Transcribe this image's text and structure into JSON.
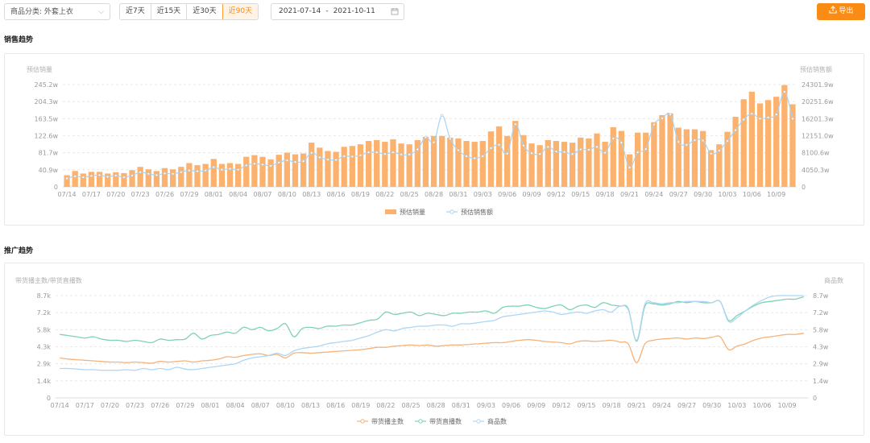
{
  "toolbar": {
    "category_label": "商品分类: 外套上衣",
    "periods": [
      "近7天",
      "近15天",
      "近30天",
      "近90天"
    ],
    "active_period": 3,
    "date_start": "2021-07-14",
    "date_sep": "-",
    "date_end": "2021-10-11",
    "export_label": "导出",
    "accent_color": "#fa8c16"
  },
  "icons": {
    "dropdown": "chevron-down-icon",
    "calendar": "calendar-icon",
    "export": "upload-icon"
  },
  "sections": {
    "sales_title": "销售趋势",
    "promo_title": "推广趋势"
  },
  "chart_data": [
    {
      "type": "bar",
      "x": [
        "07/14",
        "07/15",
        "07/16",
        "07/17",
        "07/18",
        "07/19",
        "07/20",
        "07/21",
        "07/22",
        "07/23",
        "07/24",
        "07/25",
        "07/26",
        "07/27",
        "07/28",
        "07/29",
        "07/30",
        "07/31",
        "08/01",
        "08/02",
        "08/03",
        "08/04",
        "08/05",
        "08/06",
        "08/07",
        "08/08",
        "08/09",
        "08/10",
        "08/11",
        "08/12",
        "08/13",
        "08/14",
        "08/15",
        "08/16",
        "08/17",
        "08/18",
        "08/19",
        "08/20",
        "08/21",
        "08/22",
        "08/23",
        "08/24",
        "08/25",
        "08/26",
        "08/27",
        "08/28",
        "08/29",
        "08/30",
        "08/31",
        "09/01",
        "09/02",
        "09/03",
        "09/04",
        "09/05",
        "09/06",
        "09/07",
        "09/08",
        "09/09",
        "09/10",
        "09/11",
        "09/12",
        "09/13",
        "09/14",
        "09/15",
        "09/16",
        "09/17",
        "09/18",
        "09/19",
        "09/20",
        "09/21",
        "09/22",
        "09/23",
        "09/24",
        "09/25",
        "09/26",
        "09/27",
        "09/28",
        "09/29",
        "09/30",
        "10/01",
        "10/02",
        "10/03",
        "10/04",
        "10/05",
        "10/06",
        "10/07",
        "10/08",
        "10/09",
        "10/10",
        "10/11"
      ],
      "x_tick_labels": [
        "07/14",
        "07/17",
        "07/20",
        "07/23",
        "07/26",
        "07/29",
        "08/01",
        "08/04",
        "08/07",
        "08/10",
        "08/13",
        "08/16",
        "08/19",
        "08/22",
        "08/25",
        "08/28",
        "08/31",
        "09/03",
        "09/06",
        "09/09",
        "09/12",
        "09/15",
        "09/18",
        "09/21",
        "09/24",
        "09/27",
        "09/30",
        "10/03",
        "10/06",
        "10/09"
      ],
      "y_left": {
        "label": "预估销量",
        "ticks": [
          "0",
          "40.9w",
          "81.7w",
          "122.6w",
          "163.5w",
          "204.3w",
          "245.2w"
        ],
        "range": [
          0,
          245.2
        ]
      },
      "y_right": {
        "label": "预估销售额",
        "ticks": [
          "0",
          "4050.3w",
          "8100.6w",
          "12151.0w",
          "16201.3w",
          "20251.6w",
          "24301.9w"
        ],
        "range": [
          0,
          24301.9
        ]
      },
      "series": [
        {
          "name": "预估销量",
          "kind": "bar",
          "axis": "left",
          "color": "#fbb26e",
          "values": [
            28,
            38,
            32,
            36,
            36,
            32,
            35,
            33,
            40,
            48,
            42,
            38,
            45,
            42,
            48,
            57,
            52,
            55,
            67,
            55,
            57,
            55,
            72,
            76,
            72,
            66,
            77,
            82,
            78,
            80,
            106,
            94,
            86,
            84,
            96,
            98,
            102,
            110,
            112,
            108,
            114,
            104,
            102,
            112,
            120,
            122,
            122,
            118,
            116,
            110,
            108,
            110,
            133,
            145,
            122,
            158,
            124,
            104,
            100,
            112,
            110,
            108,
            106,
            118,
            116,
            128,
            108,
            143,
            134,
            78,
            130,
            130,
            155,
            172,
            176,
            142,
            138,
            138,
            134,
            88,
            102,
            132,
            168,
            210,
            228,
            200,
            208,
            216,
            244,
            198
          ]
        },
        {
          "name": "预估销售额",
          "kind": "line",
          "axis": "right",
          "color": "#a9d3f2",
          "values": [
            2000,
            2500,
            2300,
            2600,
            2800,
            2400,
            2700,
            2300,
            2700,
            3500,
            3100,
            2800,
            3200,
            3100,
            3500,
            3900,
            3700,
            3900,
            4700,
            4100,
            4300,
            4100,
            5100,
            5500,
            5300,
            5000,
            5800,
            6300,
            5900,
            6100,
            8100,
            7000,
            6500,
            6400,
            7300,
            7200,
            7500,
            8200,
            8200,
            7800,
            8200,
            7700,
            7700,
            8900,
            11800,
            10600,
            17000,
            11400,
            8700,
            7300,
            6800,
            7300,
            9200,
            10000,
            7900,
            14900,
            9800,
            8000,
            7800,
            9500,
            8400,
            8300,
            7800,
            8900,
            8800,
            9500,
            8100,
            11500,
            10500,
            4600,
            8200,
            9000,
            14800,
            16300,
            17200,
            10700,
            10000,
            11100,
            11000,
            7900,
            8600,
            10900,
            13500,
            16000,
            17400,
            16200,
            16500,
            17200,
            22600,
            16200
          ]
        }
      ]
    },
    {
      "type": "line",
      "x": [
        "07/14",
        "07/15",
        "07/16",
        "07/17",
        "07/18",
        "07/19",
        "07/20",
        "07/21",
        "07/22",
        "07/23",
        "07/24",
        "07/25",
        "07/26",
        "07/27",
        "07/28",
        "07/29",
        "07/30",
        "07/31",
        "08/01",
        "08/02",
        "08/03",
        "08/04",
        "08/05",
        "08/06",
        "08/07",
        "08/08",
        "08/09",
        "08/10",
        "08/11",
        "08/12",
        "08/13",
        "08/14",
        "08/15",
        "08/16",
        "08/17",
        "08/18",
        "08/19",
        "08/20",
        "08/21",
        "08/22",
        "08/23",
        "08/24",
        "08/25",
        "08/26",
        "08/27",
        "08/28",
        "08/29",
        "08/30",
        "08/31",
        "09/01",
        "09/02",
        "09/03",
        "09/04",
        "09/05",
        "09/06",
        "09/07",
        "09/08",
        "09/09",
        "09/10",
        "09/11",
        "09/12",
        "09/13",
        "09/14",
        "09/15",
        "09/16",
        "09/17",
        "09/18",
        "09/19",
        "09/20",
        "09/21",
        "09/22",
        "09/23",
        "09/24",
        "09/25",
        "09/26",
        "09/27",
        "09/28",
        "09/29",
        "09/30",
        "10/01",
        "10/02",
        "10/03",
        "10/04",
        "10/05",
        "10/06",
        "10/07",
        "10/08",
        "10/09",
        "10/10",
        "10/11"
      ],
      "x_tick_labels": [
        "07/14",
        "07/17",
        "07/20",
        "07/23",
        "07/26",
        "07/29",
        "08/01",
        "08/04",
        "08/07",
        "08/10",
        "08/13",
        "08/16",
        "08/19",
        "08/22",
        "08/25",
        "08/28",
        "08/31",
        "09/03",
        "09/06",
        "09/09",
        "09/12",
        "09/15",
        "09/18",
        "09/21",
        "09/24",
        "09/27",
        "09/30",
        "10/03",
        "10/06",
        "10/09"
      ],
      "y_left": {
        "label": "带货播主数/带货直播数",
        "ticks": [
          "0",
          "1.4k",
          "2.9k",
          "4.3k",
          "5.8k",
          "7.2k",
          "8.7k"
        ],
        "range": [
          0,
          8.7
        ]
      },
      "y_right": {
        "label": "商品数",
        "ticks": [
          "0",
          "1.4w",
          "2.9w",
          "4.3w",
          "5.8w",
          "7.2w",
          "8.7w"
        ],
        "range": [
          0,
          8.7
        ]
      },
      "series": [
        {
          "name": "带货播主数",
          "axis": "left",
          "color": "#f5b27a",
          "values": [
            3.4,
            3.3,
            3.25,
            3.2,
            3.15,
            3.1,
            3.05,
            3.05,
            3.0,
            3.05,
            3.0,
            2.95,
            3.1,
            3.05,
            3.1,
            3.15,
            3.05,
            3.15,
            3.2,
            3.3,
            3.5,
            3.45,
            3.6,
            3.7,
            3.75,
            3.6,
            3.7,
            3.4,
            3.8,
            3.85,
            3.8,
            3.85,
            3.9,
            3.95,
            4.0,
            4.05,
            4.1,
            4.2,
            4.3,
            4.3,
            4.4,
            4.45,
            4.5,
            4.45,
            4.5,
            4.4,
            4.45,
            4.5,
            4.5,
            4.55,
            4.6,
            4.65,
            4.7,
            4.7,
            4.8,
            4.9,
            4.95,
            4.9,
            4.8,
            4.75,
            4.7,
            4.6,
            4.8,
            4.85,
            4.8,
            4.85,
            4.9,
            4.75,
            4.6,
            3.0,
            4.6,
            4.9,
            5.0,
            5.05,
            5.1,
            5.0,
            5.1,
            5.05,
            5.15,
            5.2,
            4.1,
            4.4,
            4.6,
            4.9,
            5.1,
            5.2,
            5.3,
            5.4,
            5.4,
            5.5
          ]
        },
        {
          "name": "带货直播数",
          "axis": "left",
          "color": "#7fd2b5",
          "values": [
            5.4,
            5.3,
            5.2,
            5.1,
            5.2,
            5.0,
            4.9,
            4.9,
            4.8,
            4.9,
            4.8,
            4.7,
            5.0,
            4.9,
            4.95,
            5.0,
            5.5,
            5.0,
            5.3,
            5.4,
            5.6,
            5.5,
            6.0,
            5.8,
            6.0,
            5.7,
            5.9,
            6.3,
            5.2,
            5.9,
            6.0,
            5.9,
            6.1,
            6.1,
            6.2,
            6.2,
            6.4,
            6.6,
            6.7,
            7.3,
            7.1,
            7.2,
            7.3,
            7.0,
            7.2,
            7.1,
            7.0,
            7.2,
            7.2,
            7.3,
            7.3,
            7.4,
            7.2,
            7.7,
            7.8,
            7.8,
            7.9,
            7.7,
            7.6,
            7.8,
            7.9,
            7.5,
            7.8,
            7.9,
            7.7,
            8.1,
            7.9,
            7.8,
            7.6,
            4.8,
            7.8,
            8.0,
            7.9,
            8.0,
            8.2,
            8.1,
            8.2,
            8.1,
            8.1,
            8.2,
            6.6,
            7.0,
            7.4,
            7.8,
            8.1,
            8.2,
            8.3,
            8.4,
            8.4,
            8.6
          ]
        },
        {
          "name": "商品数",
          "axis": "right",
          "color": "#aed6f5",
          "values": [
            2.5,
            2.5,
            2.45,
            2.4,
            2.4,
            2.35,
            2.35,
            2.35,
            2.4,
            2.35,
            2.5,
            2.4,
            2.5,
            2.4,
            2.6,
            2.45,
            2.4,
            2.5,
            2.6,
            2.7,
            2.8,
            2.9,
            3.2,
            3.4,
            3.5,
            3.6,
            3.8,
            3.6,
            4.0,
            4.2,
            4.3,
            4.4,
            4.6,
            4.7,
            4.8,
            4.9,
            5.1,
            5.3,
            5.6,
            5.8,
            5.7,
            5.9,
            6.0,
            6.1,
            6.1,
            6.2,
            6.2,
            6.1,
            6.3,
            6.3,
            6.4,
            6.5,
            6.6,
            6.9,
            7.0,
            7.1,
            7.2,
            7.3,
            7.4,
            7.3,
            7.1,
            7.2,
            7.3,
            7.2,
            7.4,
            7.5,
            7.3,
            7.8,
            7.5,
            4.9,
            8.0,
            8.1,
            8.0,
            8.1,
            8.1,
            8.2,
            8.2,
            8.2,
            8.1,
            8.2,
            6.5,
            6.8,
            7.4,
            7.9,
            8.3,
            8.6,
            8.7,
            8.7,
            8.7,
            8.7
          ]
        }
      ]
    }
  ]
}
